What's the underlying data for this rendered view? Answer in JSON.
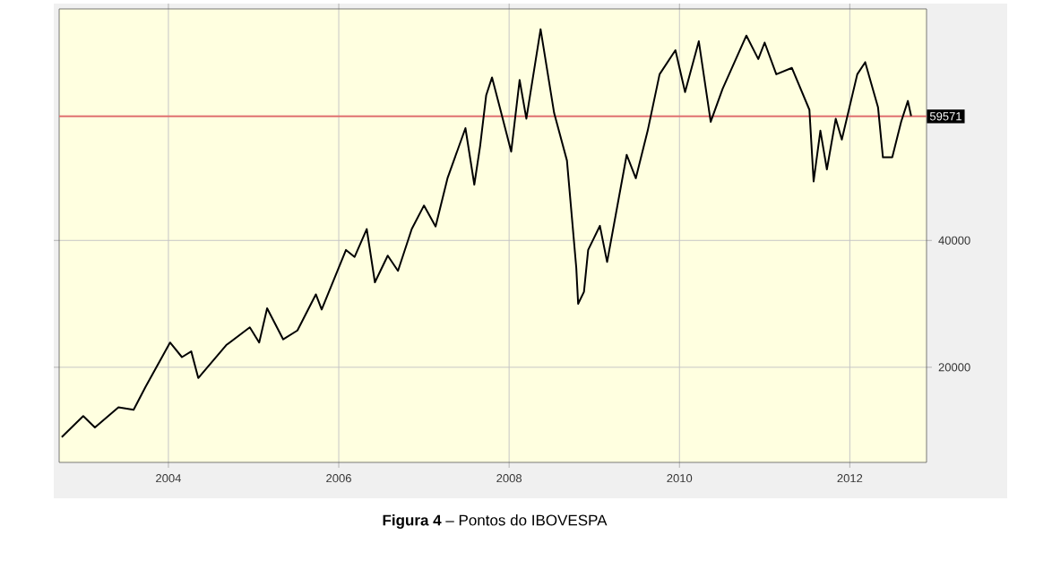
{
  "chart_data": {
    "type": "line",
    "x": [
      "2002-10-01",
      "2003-01-01",
      "2003-02-20",
      "2003-06-01",
      "2003-08-05",
      "2003-09-25",
      "2004-01-08",
      "2004-02-28",
      "2004-04-08",
      "2004-05-08",
      "2004-09-05",
      "2004-12-15",
      "2005-01-25",
      "2005-02-28",
      "2005-05-08",
      "2005-07-08",
      "2005-09-25",
      "2005-10-20",
      "2006-02-01",
      "2006-03-10",
      "2006-05-01",
      "2006-06-05",
      "2006-07-30",
      "2006-09-12",
      "2006-11-10",
      "2007-01-01",
      "2007-02-20",
      "2007-04-12",
      "2007-06-28",
      "2007-08-05",
      "2007-08-30",
      "2007-09-25",
      "2007-10-20",
      "2007-11-25",
      "2008-01-10",
      "2008-02-15",
      "2008-03-15",
      "2008-05-15",
      "2008-07-12",
      "2008-09-05",
      "2008-10-15",
      "2008-10-23",
      "2008-11-17",
      "2008-12-05",
      "2009-01-25",
      "2009-02-25",
      "2009-05-20",
      "2009-06-28",
      "2009-08-18",
      "2009-10-08",
      "2009-12-15",
      "2010-01-25",
      "2010-03-25",
      "2010-05-15",
      "2010-07-05",
      "2010-10-15",
      "2010-12-05",
      "2011-01-01",
      "2011-02-20",
      "2011-04-28",
      "2011-07-12",
      "2011-07-30",
      "2011-08-28",
      "2011-09-25",
      "2011-11-02",
      "2011-11-28",
      "2012-02-02",
      "2012-03-07",
      "2012-05-01",
      "2012-05-22",
      "2012-07-01",
      "2012-08-08",
      "2012-09-06",
      "2012-09-20"
    ],
    "series": [
      {
        "color": "#000000",
        "values": [
          9000,
          12300,
          10500,
          13700,
          13300,
          16900,
          23900,
          21600,
          22500,
          18300,
          23500,
          26300,
          23900,
          29300,
          24400,
          25800,
          31500,
          29100,
          38500,
          37400,
          41800,
          33400,
          37600,
          35200,
          41800,
          45500,
          42200,
          49800,
          57700,
          48800,
          54900,
          62900,
          65700,
          60600,
          54000,
          65300,
          59200,
          73300,
          60100,
          52600,
          35700,
          30000,
          31900,
          38500,
          42300,
          36600,
          53500,
          49800,
          57300,
          66200,
          70000,
          63400,
          71400,
          58700,
          63900,
          72300,
          68600,
          71200,
          66200,
          67200,
          60600,
          49300,
          57300,
          51200,
          59200,
          55900,
          66200,
          68100,
          61000,
          53100,
          53100,
          58700,
          62000,
          59600
        ]
      }
    ],
    "xlim": [
      "2002-09-20",
      "2012-11-25"
    ],
    "xticks": [
      {
        "value": "2004-01-01",
        "label": "2004"
      },
      {
        "value": "2006-01-01",
        "label": "2006"
      },
      {
        "value": "2008-01-01",
        "label": "2008"
      },
      {
        "value": "2010-01-01",
        "label": "2010"
      },
      {
        "value": "2012-01-01",
        "label": "2012"
      }
    ],
    "ylim": [
      5000,
      76500
    ],
    "yticks": [
      20000,
      40000
    ],
    "grid": true,
    "marker": "none",
    "line_style": "solid",
    "ref_lines": [
      {
        "axis": "y",
        "value": 59571,
        "label": "59571",
        "color": "#e07070"
      }
    ],
    "annotations": [
      "**Figura 4** – Pontos do IBOVESPA"
    ]
  }
}
